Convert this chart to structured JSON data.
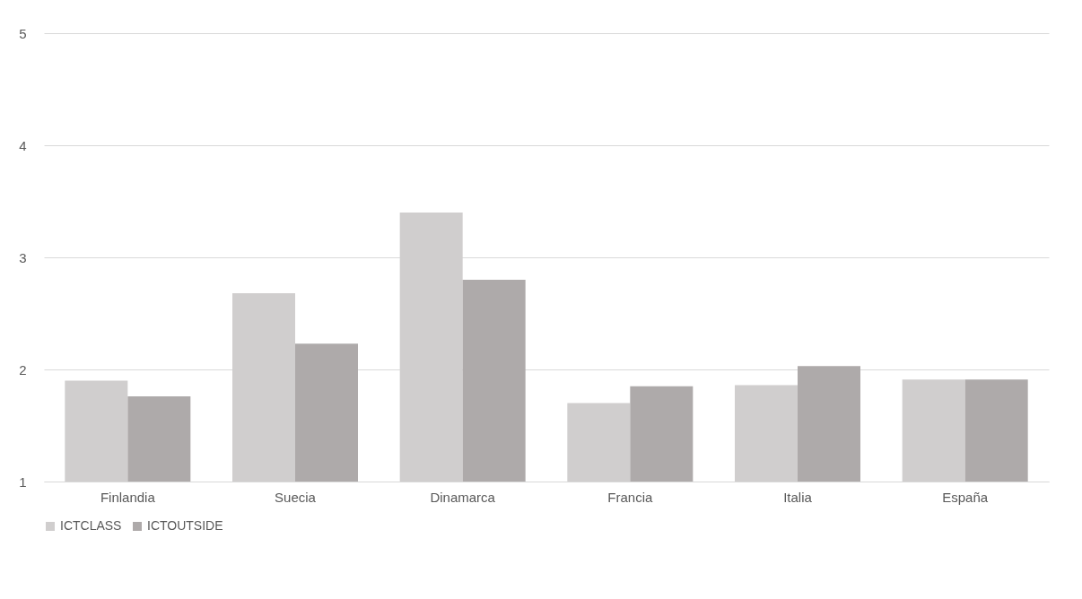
{
  "chart_data": {
    "type": "bar",
    "categories": [
      "Finlandia",
      "Suecia",
      "Dinamarca",
      "Francia",
      "Italia",
      "España"
    ],
    "series": [
      {
        "name": "ICTCLASS",
        "color": "#d0cece",
        "values": [
          1.9,
          2.68,
          3.4,
          1.7,
          1.86,
          1.91
        ]
      },
      {
        "name": "ICTOUTSIDE",
        "color": "#aeaaaa",
        "values": [
          1.76,
          2.23,
          2.8,
          1.85,
          2.03,
          1.91
        ]
      }
    ],
    "ylim": [
      1,
      5
    ],
    "yticks": [
      1,
      2,
      3,
      4,
      5
    ],
    "grid": "y",
    "legend": "bottom"
  }
}
